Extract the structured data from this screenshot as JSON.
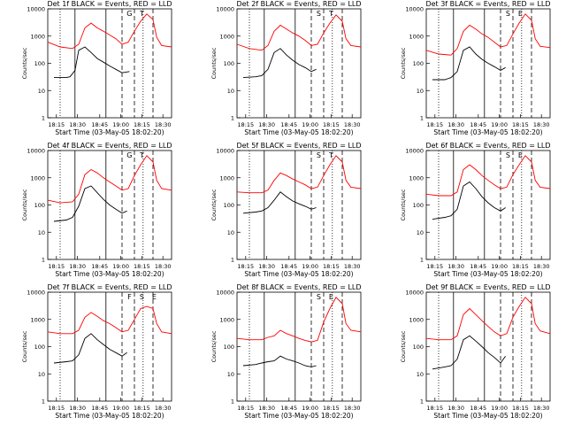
{
  "figure": {
    "common": {
      "x_tick_labels": [
        "18:15",
        "18:30",
        "18:45",
        "19:00",
        "18:15",
        "18:30"
      ],
      "x_label": "Start Time (03-May-05 18:02:20)",
      "y_label": "Counts/sec",
      "y_tick_labels": [
        "1",
        "10",
        "100",
        "1000",
        "10000"
      ],
      "y_scale": "log",
      "ylim": [
        1,
        10000
      ],
      "black_series_name": "Events",
      "red_series_name": "LLD",
      "colors": {
        "black": "#000000",
        "red": "#ff0000"
      }
    }
  },
  "chart_data": [
    {
      "type": "line",
      "title": "Det 1f BLACK = Events, RED = LLD",
      "series": [
        {
          "name": "Events",
          "color": "black",
          "x": [
            0.05,
            0.15,
            0.18,
            0.22,
            0.25,
            0.3,
            0.35,
            0.4,
            0.45,
            0.5,
            0.55,
            0.6,
            0.66
          ],
          "values": [
            30,
            30,
            32,
            55,
            300,
            400,
            250,
            150,
            110,
            80,
            60,
            45,
            50
          ]
        },
        {
          "name": "LLD",
          "color": "red",
          "x": [
            0.0,
            0.1,
            0.2,
            0.25,
            0.3,
            0.35,
            0.4,
            0.45,
            0.5,
            0.55,
            0.6,
            0.65,
            0.7,
            0.75,
            0.8,
            0.85,
            0.88,
            0.92,
            1.0
          ],
          "values": [
            600,
            400,
            350,
            500,
            2000,
            3000,
            2000,
            1500,
            1100,
            800,
            500,
            600,
            1500,
            3500,
            6500,
            4000,
            900,
            450,
            400
          ]
        }
      ],
      "annotations": [
        "G",
        "T"
      ]
    },
    {
      "type": "line",
      "title": "Det 2f BLACK = Events, RED = LLD",
      "series": [
        {
          "name": "Events",
          "color": "black",
          "x": [
            0.05,
            0.15,
            0.2,
            0.25,
            0.3,
            0.35,
            0.4,
            0.45,
            0.5,
            0.55,
            0.6,
            0.64
          ],
          "values": [
            30,
            32,
            35,
            60,
            250,
            350,
            200,
            130,
            90,
            70,
            50,
            60
          ]
        },
        {
          "name": "LLD",
          "color": "red",
          "x": [
            0.0,
            0.1,
            0.2,
            0.25,
            0.3,
            0.35,
            0.4,
            0.45,
            0.5,
            0.55,
            0.6,
            0.65,
            0.7,
            0.75,
            0.8,
            0.85,
            0.88,
            0.92,
            1.0
          ],
          "values": [
            500,
            350,
            300,
            450,
            1500,
            2500,
            1800,
            1300,
            1000,
            700,
            450,
            500,
            1300,
            3000,
            6000,
            3500,
            800,
            450,
            400
          ]
        }
      ],
      "annotations": [
        "S",
        "T"
      ]
    },
    {
      "type": "line",
      "title": "Det 3f BLACK = Events, RED = LLD",
      "series": [
        {
          "name": "Events",
          "color": "black",
          "x": [
            0.05,
            0.15,
            0.2,
            0.25,
            0.3,
            0.35,
            0.4,
            0.45,
            0.5,
            0.55,
            0.6,
            0.64
          ],
          "values": [
            25,
            25,
            30,
            50,
            300,
            400,
            220,
            140,
            100,
            75,
            55,
            70
          ]
        },
        {
          "name": "LLD",
          "color": "red",
          "x": [
            0.0,
            0.1,
            0.2,
            0.25,
            0.3,
            0.35,
            0.4,
            0.45,
            0.5,
            0.55,
            0.6,
            0.65,
            0.7,
            0.75,
            0.8,
            0.85,
            0.88,
            0.92,
            1.0
          ],
          "values": [
            300,
            220,
            200,
            350,
            1500,
            2500,
            1800,
            1200,
            900,
            600,
            400,
            450,
            1200,
            3000,
            6500,
            3800,
            800,
            420,
            380
          ]
        }
      ],
      "annotations": [
        "S",
        "E"
      ]
    },
    {
      "type": "line",
      "title": "Det 4f BLACK = Events, RED = LLD",
      "series": [
        {
          "name": "Events",
          "color": "black",
          "x": [
            0.05,
            0.15,
            0.2,
            0.25,
            0.3,
            0.35,
            0.4,
            0.45,
            0.5,
            0.55,
            0.6,
            0.64
          ],
          "values": [
            25,
            28,
            35,
            90,
            400,
            500,
            280,
            160,
            100,
            70,
            50,
            60
          ]
        },
        {
          "name": "LLD",
          "color": "red",
          "x": [
            0.0,
            0.1,
            0.2,
            0.25,
            0.3,
            0.35,
            0.4,
            0.45,
            0.5,
            0.55,
            0.6,
            0.65,
            0.7,
            0.75,
            0.8,
            0.85,
            0.88,
            0.92,
            1.0
          ],
          "values": [
            150,
            120,
            130,
            250,
            1300,
            2000,
            1500,
            1000,
            700,
            500,
            350,
            400,
            1200,
            3000,
            6500,
            3800,
            800,
            400,
            350
          ]
        }
      ],
      "annotations": [
        "G",
        "T"
      ]
    },
    {
      "type": "line",
      "title": "Det 5f BLACK = Events, RED = LLD",
      "series": [
        {
          "name": "Events",
          "color": "black",
          "x": [
            0.05,
            0.15,
            0.2,
            0.25,
            0.3,
            0.35,
            0.4,
            0.45,
            0.5,
            0.55,
            0.6,
            0.64
          ],
          "values": [
            50,
            55,
            60,
            80,
            150,
            300,
            200,
            140,
            110,
            90,
            70,
            80
          ]
        },
        {
          "name": "LLD",
          "color": "red",
          "x": [
            0.0,
            0.1,
            0.2,
            0.25,
            0.3,
            0.35,
            0.4,
            0.45,
            0.5,
            0.55,
            0.6,
            0.65,
            0.7,
            0.75,
            0.8,
            0.85,
            0.88,
            0.92,
            1.0
          ],
          "values": [
            300,
            280,
            280,
            350,
            800,
            1500,
            1200,
            900,
            700,
            550,
            400,
            450,
            1200,
            3000,
            6500,
            3800,
            800,
            450,
            400
          ]
        }
      ],
      "annotations": [
        "S",
        "T"
      ]
    },
    {
      "type": "line",
      "title": "Det 6f BLACK = Events, RED = LLD",
      "series": [
        {
          "name": "Events",
          "color": "black",
          "x": [
            0.05,
            0.15,
            0.2,
            0.25,
            0.3,
            0.35,
            0.4,
            0.45,
            0.5,
            0.55,
            0.6,
            0.64
          ],
          "values": [
            30,
            35,
            40,
            70,
            500,
            700,
            400,
            200,
            120,
            80,
            60,
            80
          ]
        },
        {
          "name": "LLD",
          "color": "red",
          "x": [
            0.0,
            0.1,
            0.2,
            0.25,
            0.3,
            0.35,
            0.4,
            0.45,
            0.5,
            0.55,
            0.6,
            0.65,
            0.7,
            0.75,
            0.8,
            0.85,
            0.88,
            0.92,
            1.0
          ],
          "values": [
            250,
            220,
            220,
            300,
            2000,
            3000,
            2000,
            1200,
            800,
            550,
            400,
            450,
            1300,
            3000,
            6500,
            3800,
            800,
            450,
            400
          ]
        }
      ],
      "annotations": [
        "S",
        "E"
      ]
    },
    {
      "type": "line",
      "title": "Det 7f BLACK = Events, RED = LLD",
      "series": [
        {
          "name": "Events",
          "color": "black",
          "x": [
            0.05,
            0.15,
            0.2,
            0.25,
            0.3,
            0.35,
            0.4,
            0.45,
            0.5,
            0.55,
            0.6,
            0.64
          ],
          "values": [
            25,
            28,
            30,
            50,
            200,
            300,
            180,
            120,
            80,
            60,
            45,
            60
          ]
        },
        {
          "name": "LLD",
          "color": "red",
          "x": [
            0.0,
            0.1,
            0.2,
            0.25,
            0.3,
            0.35,
            0.4,
            0.45,
            0.5,
            0.55,
            0.6,
            0.65,
            0.7,
            0.75,
            0.8,
            0.85,
            0.88,
            0.92,
            1.0
          ],
          "values": [
            350,
            300,
            300,
            400,
            1200,
            1800,
            1300,
            900,
            700,
            500,
            350,
            400,
            1000,
            2500,
            3000,
            2500,
            700,
            350,
            300
          ]
        }
      ],
      "annotations": [
        "F",
        "S",
        "E"
      ]
    },
    {
      "type": "line",
      "title": "Det 8f BLACK = Events, RED = LLD",
      "series": [
        {
          "name": "Events",
          "color": "black",
          "x": [
            0.05,
            0.15,
            0.2,
            0.25,
            0.3,
            0.35,
            0.4,
            0.45,
            0.5,
            0.55,
            0.6,
            0.64
          ],
          "values": [
            20,
            22,
            25,
            28,
            30,
            45,
            35,
            30,
            25,
            20,
            18,
            20
          ]
        },
        {
          "name": "LLD",
          "color": "red",
          "x": [
            0.0,
            0.1,
            0.2,
            0.25,
            0.3,
            0.35,
            0.4,
            0.45,
            0.5,
            0.55,
            0.6,
            0.65,
            0.7,
            0.75,
            0.8,
            0.85,
            0.88,
            0.92,
            1.0
          ],
          "values": [
            200,
            180,
            180,
            220,
            250,
            400,
            300,
            250,
            200,
            170,
            150,
            170,
            800,
            2500,
            6500,
            3800,
            700,
            400,
            350
          ]
        }
      ],
      "annotations": [
        "S",
        "E"
      ]
    },
    {
      "type": "line",
      "title": "Det 9f BLACK = Events, RED = LLD",
      "series": [
        {
          "name": "Events",
          "color": "black",
          "x": [
            0.05,
            0.15,
            0.2,
            0.25,
            0.3,
            0.35,
            0.4,
            0.45,
            0.5,
            0.55,
            0.6,
            0.64
          ],
          "values": [
            15,
            18,
            20,
            35,
            180,
            250,
            160,
            100,
            60,
            40,
            25,
            45
          ]
        },
        {
          "name": "LLD",
          "color": "red",
          "x": [
            0.0,
            0.1,
            0.2,
            0.25,
            0.3,
            0.35,
            0.4,
            0.45,
            0.5,
            0.55,
            0.6,
            0.65,
            0.7,
            0.75,
            0.8,
            0.85,
            0.88,
            0.92,
            1.0
          ],
          "values": [
            200,
            180,
            180,
            250,
            1500,
            2500,
            1500,
            900,
            550,
            350,
            250,
            300,
            1200,
            3000,
            6500,
            3800,
            700,
            380,
            300
          ]
        }
      ],
      "annotations": []
    }
  ]
}
